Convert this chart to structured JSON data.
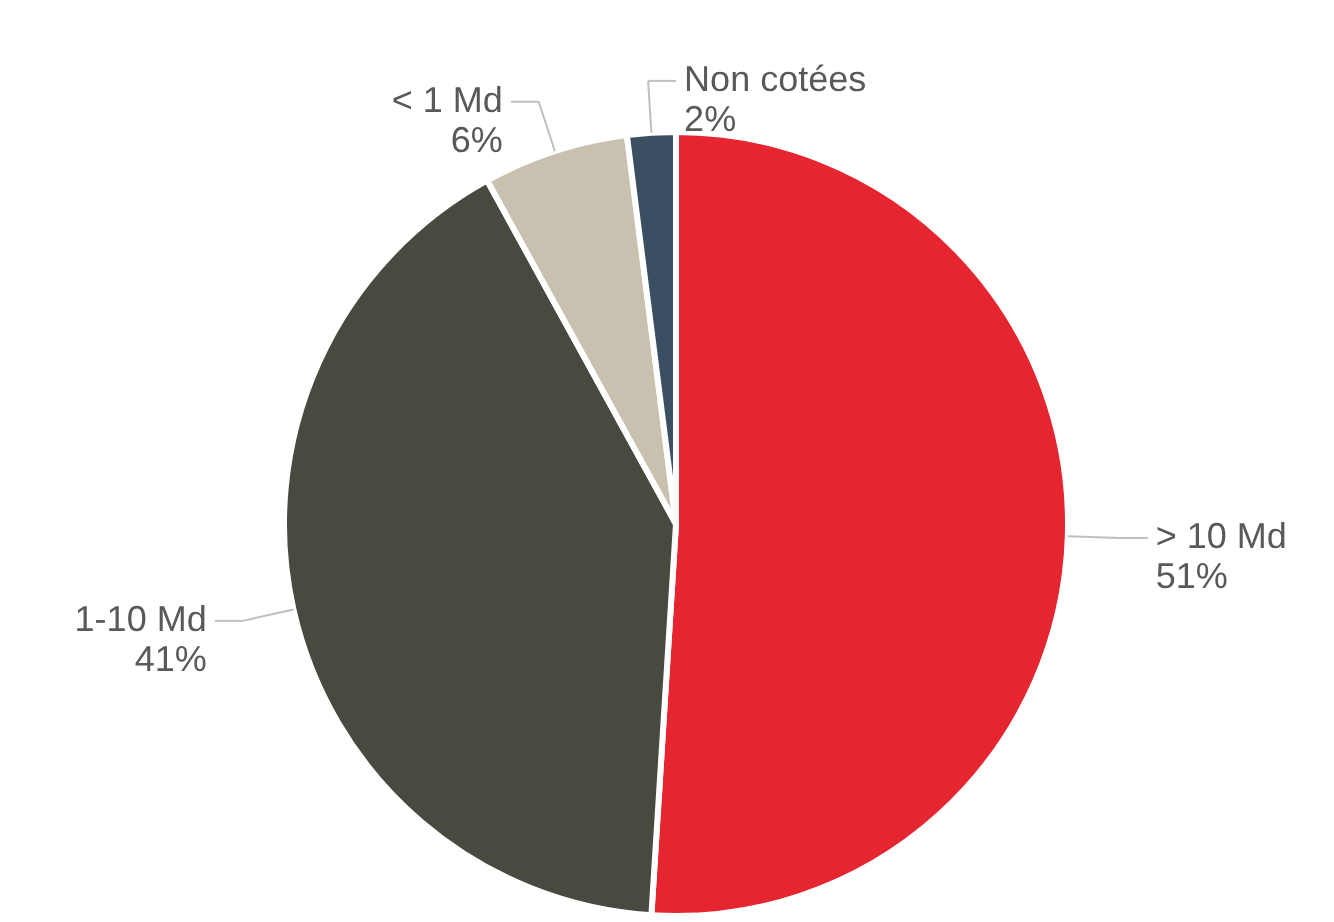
{
  "chart_data": {
    "type": "pie",
    "categories": [
      "> 10 Md",
      "1-10 Md",
      "< 1 Md",
      "Non cotées"
    ],
    "values": [
      51,
      41,
      6,
      2
    ],
    "value_labels": [
      "51%",
      "41%",
      "6%",
      "2%"
    ],
    "colors": [
      "#e52630",
      "#484a40",
      "#c9c1b0",
      "#3b4f63"
    ]
  }
}
